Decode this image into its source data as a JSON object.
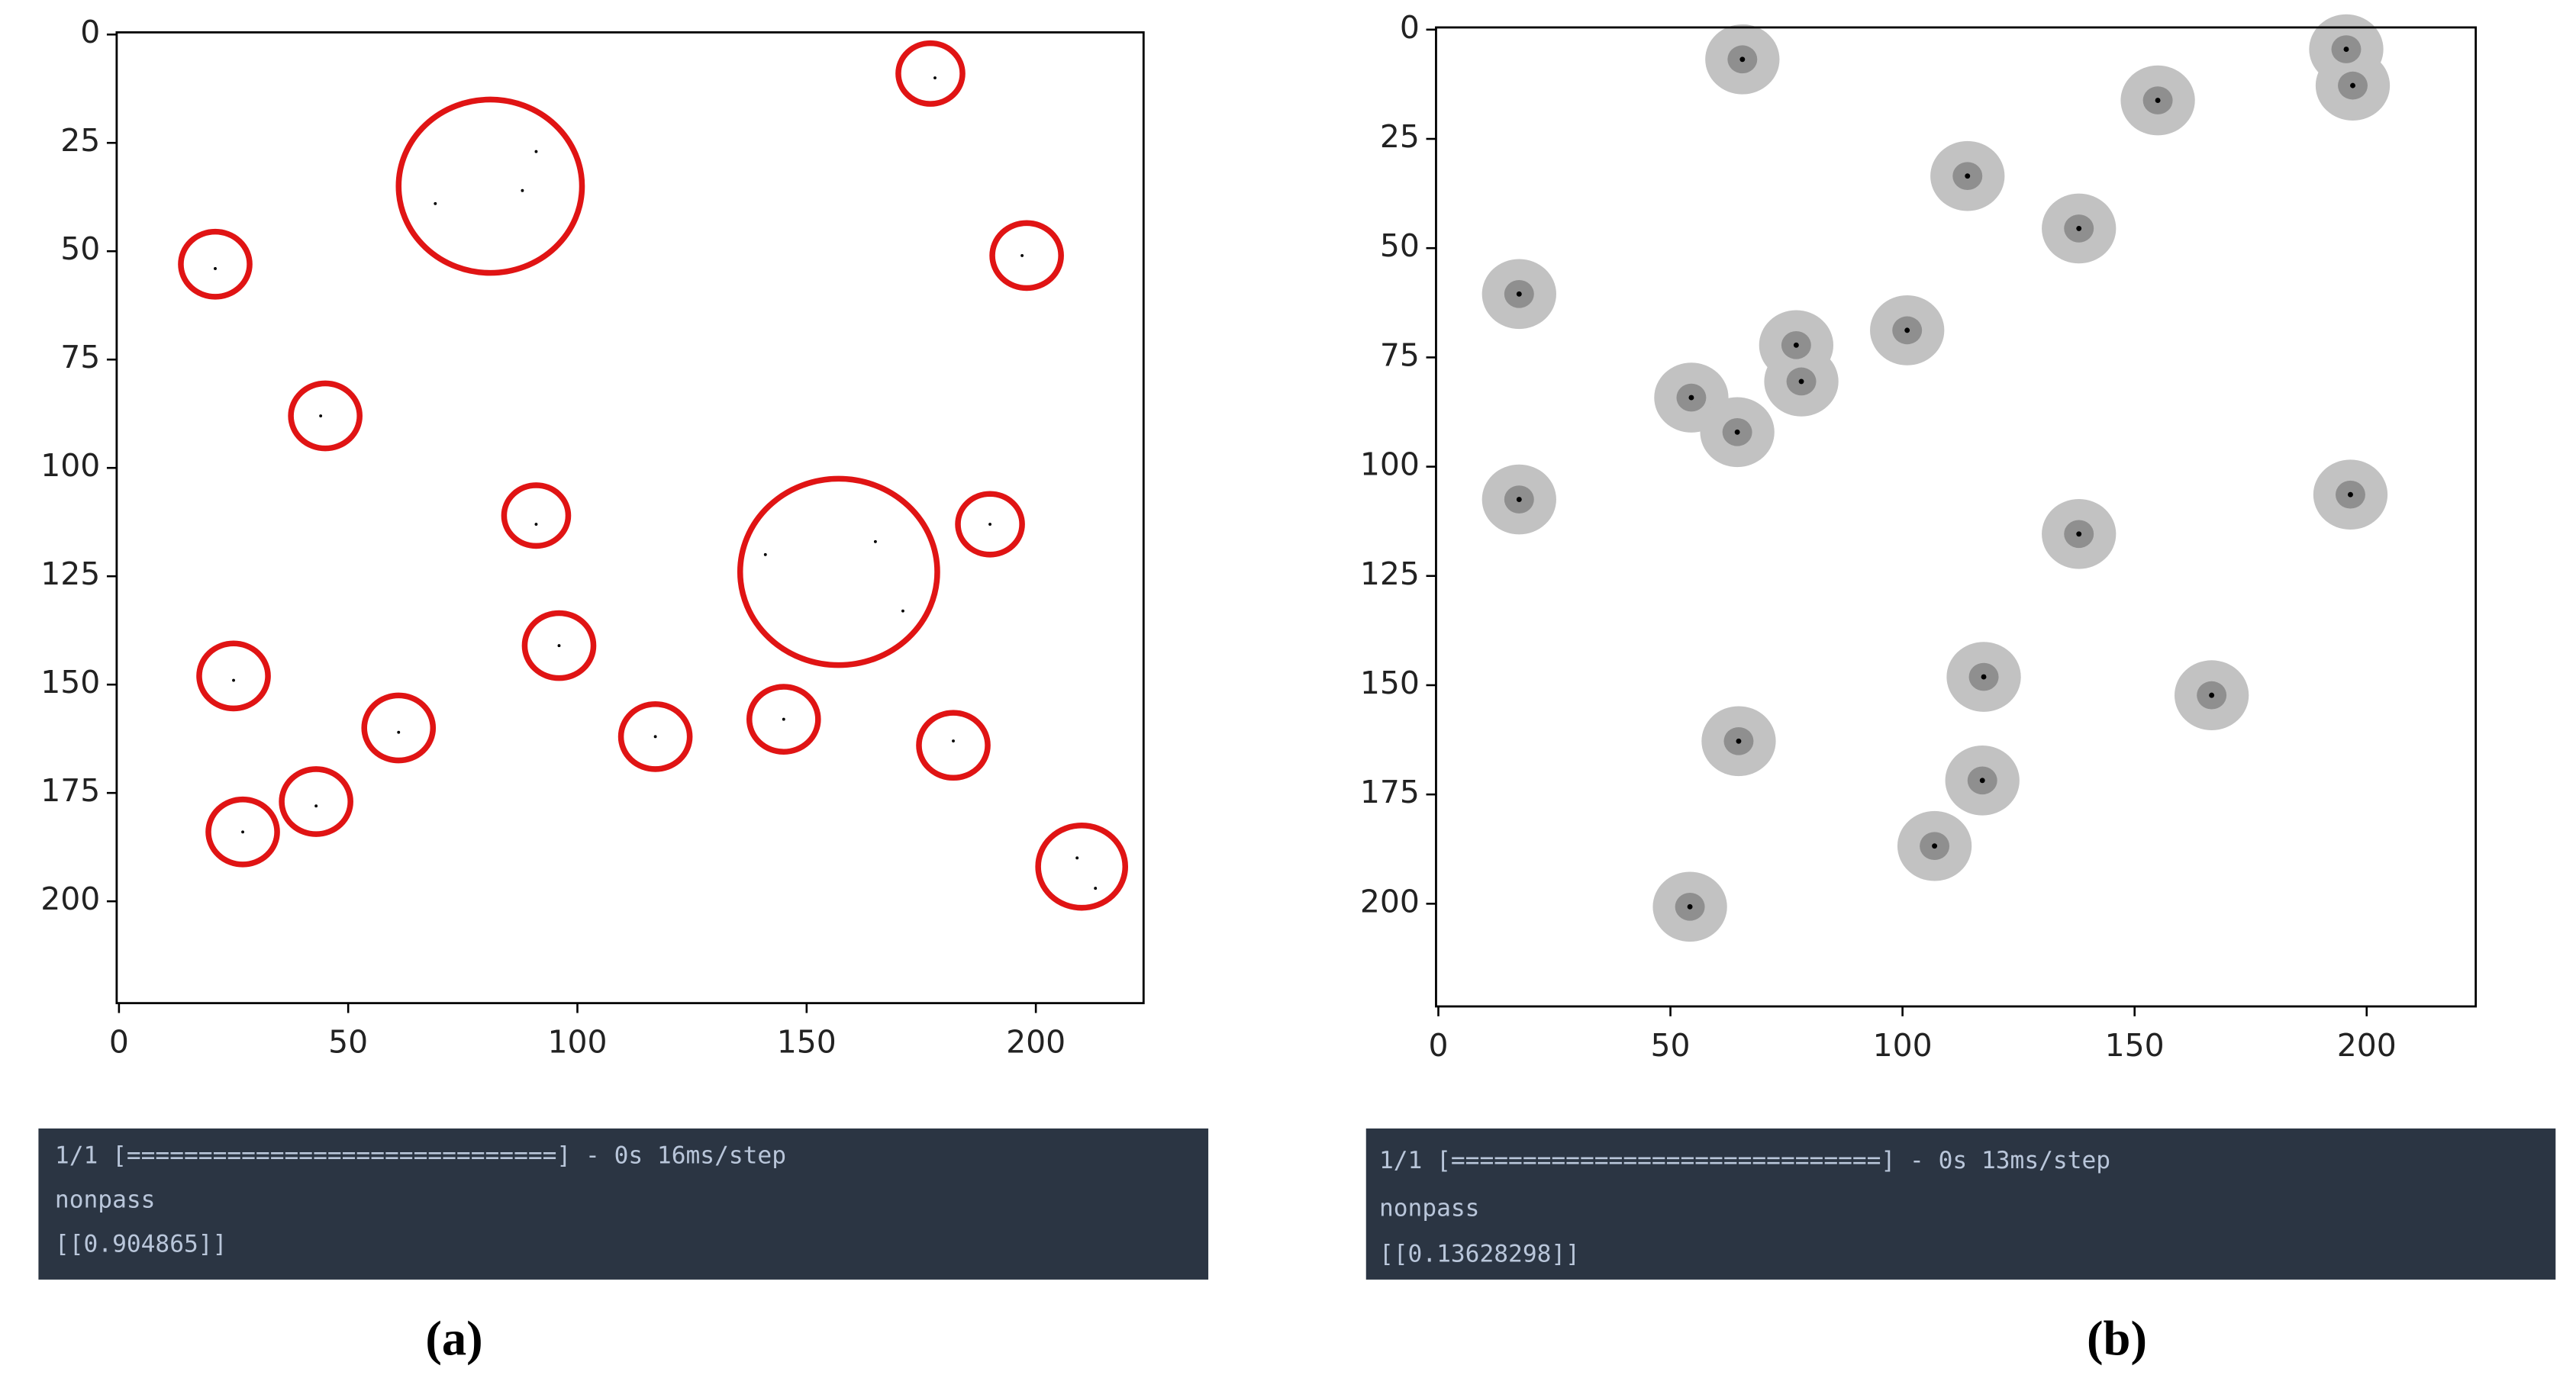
{
  "chart_data": [
    {
      "type": "scatter",
      "xlim": [
        -0.5,
        223.5
      ],
      "ylim": [
        223.5,
        -0.5
      ],
      "xticks": [
        0,
        50,
        100,
        150,
        200
      ],
      "yticks": [
        0,
        25,
        50,
        75,
        100,
        125,
        150,
        175,
        200
      ],
      "series": [
        {
          "color": "#e01414",
          "x": [
            177,
            81,
            21,
            198,
            45,
            91,
            157,
            190,
            25,
            96,
            61,
            117,
            145,
            182,
            43,
            27,
            210
          ],
          "y": [
            9,
            35,
            53,
            51,
            88,
            111,
            124,
            113,
            148,
            141,
            160,
            162,
            158,
            164,
            177,
            184,
            192
          ],
          "r": [
            7,
            20,
            7.5,
            7.5,
            7.5,
            7,
            21.5,
            7,
            7.5,
            7.5,
            7.5,
            7.5,
            7.5,
            7.5,
            7.5,
            7.5,
            9.5
          ]
        },
        {
          "color": "#000000",
          "x": [
            178,
            91,
            88,
            69,
            21,
            197,
            44,
            91,
            165,
            141,
            171,
            190,
            25,
            96,
            61,
            117,
            145,
            182,
            43,
            27,
            209,
            213
          ],
          "y": [
            10,
            27,
            36,
            39,
            54,
            51,
            88,
            113,
            117,
            120,
            133,
            113,
            149,
            141,
            161,
            162,
            158,
            163,
            178,
            184,
            190,
            197
          ]
        }
      ]
    },
    {
      "type": "density",
      "xlim": [
        -0.5,
        223.5
      ],
      "ylim": [
        223.5,
        -0.5
      ],
      "xticks": [
        0,
        50,
        100,
        150,
        200
      ],
      "yticks": [
        0,
        25,
        50,
        75,
        100,
        125,
        150,
        175,
        200
      ],
      "halo_color": "#c2c2c2",
      "core_color": "#8f8f8f",
      "series": [
        {
          "color": "#000000",
          "x": [
            65.5,
            155,
            195.6,
            197,
            114,
            138,
            17.4,
            101,
            77.1,
            78.2,
            54.5,
            64.4,
            17.4,
            196.5,
            138,
            117.5,
            117.2,
            106.9,
            166.6,
            64.7,
            54.2
          ],
          "y": [
            6.8,
            16.2,
            4.5,
            12.8,
            33.5,
            45.5,
            60.5,
            68.8,
            72.2,
            80.5,
            84.2,
            92.1,
            107.5,
            106.4,
            115.4,
            148.1,
            171.8,
            186.8,
            152.3,
            162.8,
            200.7
          ]
        }
      ]
    }
  ],
  "panels": [
    {
      "console": [
        "1/1 [==============================] - 0s 16ms/step",
        "nonpass",
        "[[0.904865]]"
      ],
      "label": "(a)"
    },
    {
      "console": [
        "1/1 [==============================] - 0s 13ms/step",
        "nonpass",
        "[[0.13628298]]"
      ],
      "label": "(b)"
    }
  ]
}
